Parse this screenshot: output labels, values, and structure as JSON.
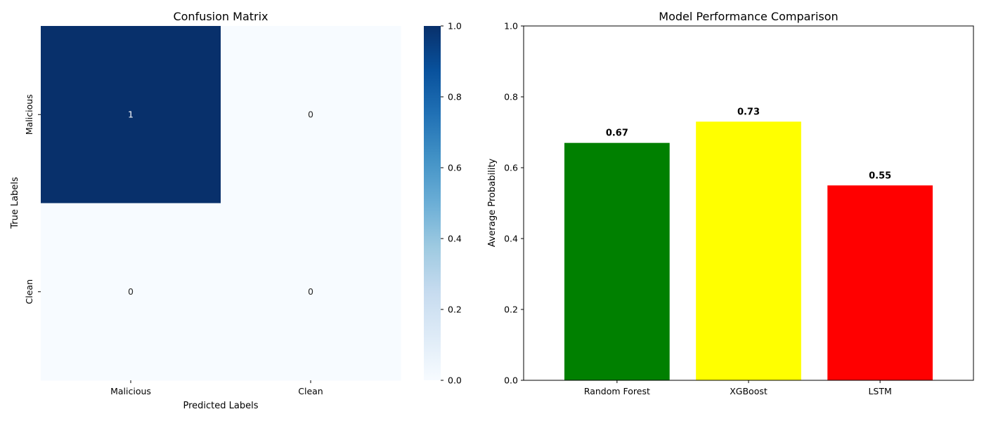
{
  "chart_data": [
    {
      "type": "heatmap",
      "title": "Confusion Matrix",
      "xlabel": "Predicted Labels",
      "ylabel": "True Labels",
      "x_categories": [
        "Malicious",
        "Clean"
      ],
      "y_categories": [
        "Malicious",
        "Clean"
      ],
      "values": [
        [
          1,
          0
        ],
        [
          0,
          0
        ]
      ],
      "cell_labels": [
        [
          "1",
          "0"
        ],
        [
          "0",
          "0"
        ]
      ],
      "colormap": "Blues",
      "color_low": "#f7fbff",
      "color_high": "#08306b",
      "colorbar": {
        "range": [
          0.0,
          1.0
        ],
        "ticks": [
          "0.0",
          "0.2",
          "0.4",
          "0.6",
          "0.8",
          "1.0"
        ]
      }
    },
    {
      "type": "bar",
      "title": "Model Performance Comparison",
      "xlabel": "",
      "ylabel": "Average Probability",
      "categories": [
        "Random Forest",
        "XGBoost",
        "LSTM"
      ],
      "values": [
        0.67,
        0.73,
        0.55
      ],
      "value_labels": [
        "0.67",
        "0.73",
        "0.55"
      ],
      "colors": [
        "#008000",
        "#ffff00",
        "#ff0000"
      ],
      "ylim": [
        0.0,
        1.0
      ],
      "yticks": [
        "0.0",
        "0.2",
        "0.4",
        "0.6",
        "0.8",
        "1.0"
      ],
      "grid": false
    }
  ]
}
